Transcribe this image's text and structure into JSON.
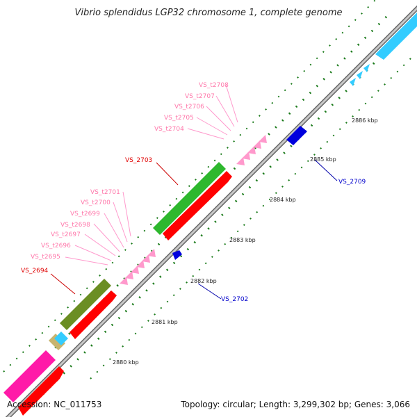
{
  "title": "Vibrio splendidus LGP32 chromosome 1, complete genome",
  "footer": {
    "accession": "Accession: NC_011753",
    "summary": "Topology: circular; Length: 3,299,302 bp; Genes: 3,066"
  },
  "scale_labels": [
    "2880 kbp",
    "2881 kbp",
    "2882 kbp",
    "2883 kbp",
    "2884 kbp",
    "2885 kbp",
    "2886 kbp"
  ],
  "gene_labels": {
    "red": [
      "VS_2694",
      "VS_2703"
    ],
    "blue": [
      "VS_2702",
      "VS_2709"
    ],
    "pink": [
      "VS_t2695",
      "VS_t2696",
      "VS_t2697",
      "VS_t2698",
      "VS_t2699",
      "VS_t2700",
      "VS_t2701",
      "VS_t2704",
      "VS_t2705",
      "VS_t2706",
      "VS_t2707",
      "VS_t2708"
    ]
  },
  "colors": {
    "red_gene": "#ff0000",
    "green_gene": "#2eb82e",
    "olive_gene": "#6b8e23",
    "magenta_gene": "#ff1aa8",
    "cyan_gene": "#33ccff",
    "blue_gene": "#0000dd",
    "trna": "#ff99cc",
    "tan_gene": "#c8b46e",
    "backbone": "#888888",
    "ticks": "#1a7a1a"
  }
}
